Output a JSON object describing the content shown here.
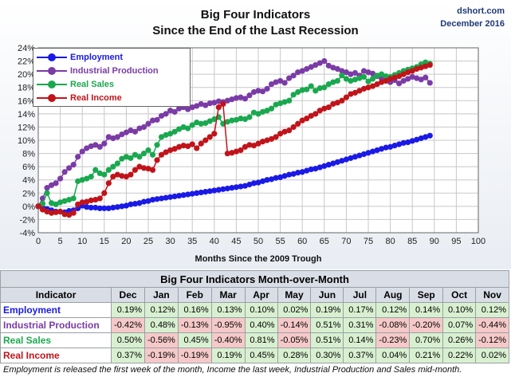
{
  "chart_data": {
    "type": "line",
    "title": "Big Four Indicators",
    "subtitle": "Since the End of the Last Recession",
    "xlabel": "Months Since the 2009 Trough",
    "ylabel": "",
    "x_ticks": [
      "0",
      "5",
      "10",
      "15",
      "20",
      "25",
      "30",
      "35",
      "40",
      "45",
      "50",
      "55",
      "60",
      "65",
      "70",
      "75",
      "80",
      "85",
      "90",
      "95",
      "100"
    ],
    "y_ticks": [
      "-4%",
      "-2%",
      "0%",
      "2%",
      "4%",
      "6%",
      "8%",
      "10%",
      "12%",
      "14%",
      "16%",
      "18%",
      "20%",
      "22%",
      "24%"
    ],
    "xlim": [
      0,
      100
    ],
    "ylim": [
      -4,
      24
    ],
    "grid": true,
    "legend_position": "top-left",
    "series": [
      {
        "name": "Employment",
        "color": "#1a1ae6",
        "x": [
          0,
          1,
          2,
          3,
          4,
          5,
          6,
          7,
          8,
          9,
          10,
          11,
          12,
          13,
          14,
          15,
          16,
          17,
          18,
          19,
          20,
          21,
          22,
          23,
          24,
          25,
          26,
          27,
          28,
          29,
          30,
          31,
          32,
          33,
          34,
          35,
          36,
          37,
          38,
          39,
          40,
          41,
          42,
          43,
          44,
          45,
          46,
          47,
          48,
          49,
          50,
          51,
          52,
          53,
          54,
          55,
          56,
          57,
          58,
          59,
          60,
          61,
          62,
          63,
          64,
          65,
          66,
          67,
          68,
          69,
          70,
          71,
          72,
          73,
          74,
          75,
          76,
          77,
          78,
          79,
          80,
          81,
          82,
          83,
          84,
          85,
          86,
          87,
          88,
          89
        ],
        "values": [
          0,
          -0.2,
          -0.4,
          -0.6,
          -0.8,
          -0.8,
          -0.9,
          -0.7,
          -0.6,
          -0.3,
          0.1,
          -0.1,
          -0.2,
          -0.2,
          -0.3,
          -0.3,
          -0.3,
          -0.2,
          -0.1,
          0,
          0.1,
          0.3,
          0.4,
          0.5,
          0.7,
          0.8,
          1,
          1.1,
          1.2,
          1.3,
          1.4,
          1.5,
          1.6,
          1.7,
          1.8,
          1.9,
          2,
          2.1,
          2.2,
          2.3,
          2.4,
          2.5,
          2.6,
          2.7,
          2.8,
          2.9,
          3,
          3.1,
          3.3,
          3.5,
          3.6,
          3.8,
          4,
          4.1,
          4.3,
          4.4,
          4.6,
          4.8,
          4.9,
          5.1,
          5.2,
          5.4,
          5.6,
          5.7,
          5.9,
          6.1,
          6.3,
          6.5,
          6.7,
          6.9,
          7.1,
          7.3,
          7.5,
          7.7,
          7.9,
          8.1,
          8.3,
          8.5,
          8.7,
          8.9,
          9,
          9.2,
          9.4,
          9.6,
          9.7,
          9.9,
          10.1,
          10.3,
          10.5,
          10.7
        ]
      },
      {
        "name": "Industrial Production",
        "color": "#7b3ba6",
        "x": [
          0,
          1,
          2,
          3,
          4,
          5,
          6,
          7,
          8,
          9,
          10,
          11,
          12,
          13,
          14,
          15,
          16,
          17,
          18,
          19,
          20,
          21,
          22,
          23,
          24,
          25,
          26,
          27,
          28,
          29,
          30,
          31,
          32,
          33,
          34,
          35,
          36,
          37,
          38,
          39,
          40,
          41,
          42,
          43,
          44,
          45,
          46,
          47,
          48,
          49,
          50,
          51,
          52,
          53,
          54,
          55,
          56,
          57,
          58,
          59,
          60,
          61,
          62,
          63,
          64,
          65,
          66,
          67,
          68,
          69,
          70,
          71,
          72,
          73,
          74,
          75,
          76,
          77,
          78,
          79,
          80,
          81,
          82,
          83,
          84,
          85,
          86,
          87,
          88,
          89
        ],
        "values": [
          0,
          1.2,
          2.8,
          3.2,
          3.5,
          4.2,
          5.2,
          5.8,
          6.3,
          7.5,
          8.3,
          8.8,
          9.1,
          9.3,
          9.0,
          9.5,
          10.5,
          10.3,
          10.5,
          10.9,
          11.2,
          11.5,
          11.3,
          11.8,
          12.0,
          12.5,
          13.0,
          13.1,
          13.7,
          14.0,
          14.5,
          14.3,
          14.8,
          15.0,
          14.7,
          15.0,
          15.2,
          15.5,
          15.3,
          15.6,
          15.7,
          15.9,
          15.8,
          16.0,
          16.2,
          16.4,
          16.5,
          16.3,
          16.8,
          17.3,
          17.5,
          17.4,
          17.8,
          18.5,
          18.8,
          19.0,
          18.7,
          19.4,
          19.8,
          20.3,
          20.5,
          20.8,
          21.1,
          21.4,
          21.7,
          22.0,
          21.3,
          21.0,
          20.8,
          20.5,
          20.3,
          20.0,
          20.2,
          19.8,
          20.5,
          20.3,
          20.1,
          19.7,
          19.4,
          19.0,
          18.8,
          19.1,
          18.6,
          19.0,
          19.3,
          19.6,
          19.4,
          19.2,
          19.5,
          18.7
        ]
      },
      {
        "name": "Real Sales",
        "color": "#1aa84f",
        "x": [
          0,
          1,
          2,
          3,
          4,
          5,
          6,
          7,
          8,
          9,
          10,
          11,
          12,
          13,
          14,
          15,
          16,
          17,
          18,
          19,
          20,
          21,
          22,
          23,
          24,
          25,
          26,
          27,
          28,
          29,
          30,
          31,
          32,
          33,
          34,
          35,
          36,
          37,
          38,
          39,
          40,
          41,
          42,
          43,
          44,
          45,
          46,
          47,
          48,
          49,
          50,
          51,
          52,
          53,
          54,
          55,
          56,
          57,
          58,
          59,
          60,
          61,
          62,
          63,
          64,
          65,
          66,
          67,
          68,
          69,
          70,
          71,
          72,
          73,
          74,
          75,
          76,
          77,
          78,
          79,
          80,
          81,
          82,
          83,
          84,
          85,
          86,
          87,
          88,
          89
        ],
        "values": [
          0,
          0.4,
          2.0,
          0.5,
          0.3,
          0.6,
          0.8,
          1.0,
          1.2,
          3.8,
          4.0,
          4.2,
          4.5,
          5.5,
          5.0,
          4.8,
          5.5,
          6.0,
          6.5,
          7.2,
          7.5,
          7.3,
          7.8,
          7.5,
          8.0,
          8.5,
          7.8,
          9.3,
          10.5,
          10.8,
          11.0,
          11.3,
          11.7,
          12.0,
          11.8,
          12.3,
          12.7,
          12.5,
          12.6,
          12.9,
          13.2,
          13.5,
          12.5,
          12.8,
          13.0,
          13.1,
          13.3,
          13.2,
          13.5,
          14.2,
          14.0,
          14.3,
          14.5,
          14.8,
          15.4,
          15.6,
          15.8,
          16.0,
          16.9,
          17.3,
          17.6,
          17.7,
          18.2,
          17.5,
          17.9,
          18.0,
          18.5,
          18.8,
          19.0,
          19.8,
          19.3,
          19.0,
          19.2,
          19.4,
          19.6,
          18.9,
          19.3,
          19.8,
          20.0,
          19.7,
          19.6,
          19.9,
          20.2,
          20.5,
          20.7,
          20.9,
          21.1,
          21.5,
          21.8,
          21.6
        ]
      },
      {
        "name": "Real Income",
        "color": "#c0141a",
        "x": [
          0,
          1,
          2,
          3,
          4,
          5,
          6,
          7,
          8,
          9,
          10,
          11,
          12,
          13,
          14,
          15,
          16,
          17,
          18,
          19,
          20,
          21,
          22,
          23,
          24,
          25,
          26,
          27,
          28,
          29,
          30,
          31,
          32,
          33,
          34,
          35,
          36,
          37,
          38,
          39,
          40,
          41,
          42,
          43,
          44,
          45,
          46,
          47,
          48,
          49,
          50,
          51,
          52,
          53,
          54,
          55,
          56,
          57,
          58,
          59,
          60,
          61,
          62,
          63,
          64,
          65,
          66,
          67,
          68,
          69,
          70,
          71,
          72,
          73,
          74,
          75,
          76,
          77,
          78,
          79,
          80,
          81,
          82,
          83,
          84,
          85,
          86,
          87,
          88,
          89
        ],
        "values": [
          0,
          -0.5,
          -0.8,
          -1.0,
          -0.9,
          -0.8,
          -1.2,
          -1.3,
          -1.0,
          0.3,
          0.6,
          0.7,
          0.9,
          1.0,
          1.2,
          2.0,
          3.5,
          4.5,
          4.8,
          4.6,
          4.5,
          4.8,
          5.5,
          6.0,
          5.8,
          5.7,
          5.5,
          7.0,
          7.8,
          8.2,
          8.5,
          8.7,
          9.0,
          9.2,
          9.1,
          9.4,
          8.8,
          9.5,
          10.0,
          10.5,
          11.0,
          15.0,
          15.5,
          8.0,
          8.1,
          8.3,
          8.5,
          9.0,
          9.3,
          9.2,
          9.5,
          9.8,
          10.0,
          10.2,
          10.5,
          11.0,
          11.3,
          11.5,
          12.0,
          12.5,
          13.0,
          13.3,
          13.7,
          14.0,
          14.5,
          14.8,
          15.0,
          15.5,
          15.7,
          16.0,
          16.5,
          17.0,
          17.2,
          17.5,
          17.8,
          18.0,
          18.2,
          18.5,
          18.8,
          19.0,
          19.3,
          19.5,
          19.7,
          20.0,
          20.3,
          20.5,
          20.8,
          21.0,
          21.2,
          21.4
        ]
      }
    ]
  },
  "header": {
    "source": "dshort.com",
    "date": "December 2016"
  },
  "table": {
    "title": "Big Four Indicators Month-over-Month",
    "indicator_header": "Indicator",
    "months": [
      "Dec",
      "Jan",
      "Feb",
      "Mar",
      "Apr",
      "May",
      "Jun",
      "Jul",
      "Aug",
      "Sep",
      "Oct",
      "Nov"
    ],
    "rows": [
      {
        "name": "Employment",
        "name_color": "#1a1ae6",
        "values": [
          "0.19%",
          "0.12%",
          "0.16%",
          "0.13%",
          "0.10%",
          "0.02%",
          "0.19%",
          "0.17%",
          "0.12%",
          "0.14%",
          "0.10%",
          "0.12%"
        ]
      },
      {
        "name": "Industrial Production",
        "name_color": "#7b3ba6",
        "values": [
          "-0.42%",
          "0.48%",
          "-0.13%",
          "-0.95%",
          "0.40%",
          "-0.14%",
          "0.51%",
          "0.31%",
          "-0.08%",
          "-0.20%",
          "0.07%",
          "-0.44%"
        ]
      },
      {
        "name": "Real Sales",
        "name_color": "#1aa84f",
        "values": [
          "0.50%",
          "-0.56%",
          "0.45%",
          "-0.40%",
          "0.81%",
          "-0.05%",
          "0.51%",
          "0.14%",
          "-0.23%",
          "0.70%",
          "0.26%",
          "-0.12%"
        ]
      },
      {
        "name": "Real Income",
        "name_color": "#c0141a",
        "values": [
          "0.37%",
          "-0.19%",
          "-0.19%",
          "0.19%",
          "0.45%",
          "0.28%",
          "0.30%",
          "0.37%",
          "0.04%",
          "0.21%",
          "0.22%",
          "0.02%"
        ]
      }
    ],
    "positive_color": "#d8f0d0",
    "negative_color": "#f6c9c9"
  },
  "footnote": "Employment is released the first week of the month, Income the last week, Industrial Production and Sales mid-month."
}
